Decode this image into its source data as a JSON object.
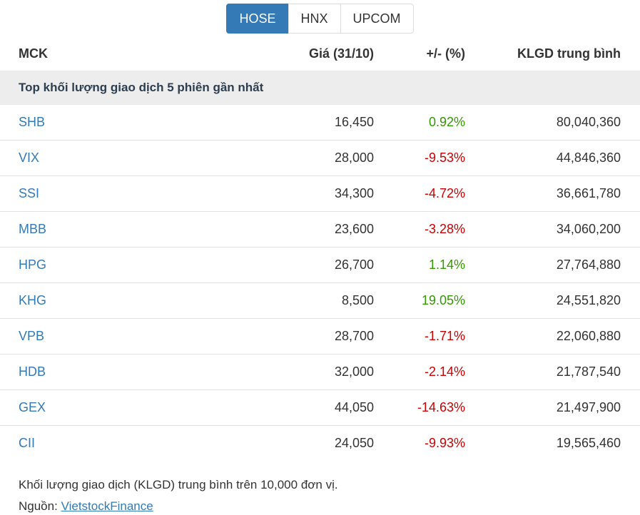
{
  "tabs": [
    {
      "label": "HOSE",
      "active": true
    },
    {
      "label": "HNX",
      "active": false
    },
    {
      "label": "UPCOM",
      "active": false
    }
  ],
  "table": {
    "columns": [
      "MCK",
      "Giá (31/10)",
      "+/- (%)",
      "KLGD trung bình"
    ],
    "section_title": "Top khối lượng giao dịch 5 phiên gần nhất",
    "rows": [
      {
        "code": "SHB",
        "price": "16,450",
        "change": "0.92%",
        "direction": "up",
        "volume": "80,040,360"
      },
      {
        "code": "VIX",
        "price": "28,000",
        "change": "-9.53%",
        "direction": "down",
        "volume": "44,846,360"
      },
      {
        "code": "SSI",
        "price": "34,300",
        "change": "-4.72%",
        "direction": "down",
        "volume": "36,661,780"
      },
      {
        "code": "MBB",
        "price": "23,600",
        "change": "-3.28%",
        "direction": "down",
        "volume": "34,060,200"
      },
      {
        "code": "HPG",
        "price": "26,700",
        "change": "1.14%",
        "direction": "up",
        "volume": "27,764,880"
      },
      {
        "code": "KHG",
        "price": "8,500",
        "change": "19.05%",
        "direction": "up",
        "volume": "24,551,820"
      },
      {
        "code": "VPB",
        "price": "28,700",
        "change": "-1.71%",
        "direction": "down",
        "volume": "22,060,880"
      },
      {
        "code": "HDB",
        "price": "32,000",
        "change": "-2.14%",
        "direction": "down",
        "volume": "21,787,540"
      },
      {
        "code": "GEX",
        "price": "44,050",
        "change": "-14.63%",
        "direction": "down",
        "volume": "21,497,900"
      },
      {
        "code": "CII",
        "price": "24,050",
        "change": "-9.93%",
        "direction": "down",
        "volume": "19,565,460"
      }
    ]
  },
  "footer": {
    "note": "Khối lượng giao dịch (KLGD) trung bình trên 10,000 đơn vị.",
    "source_label": "Nguồn:",
    "source_link": "VietstockFinance"
  },
  "colors": {
    "accent": "#337ab7",
    "up": "#339900",
    "down": "#cc0000",
    "text": "#333333",
    "section_bg": "#ededed",
    "section_text": "#2c3e50",
    "border": "#e2e2e2"
  }
}
